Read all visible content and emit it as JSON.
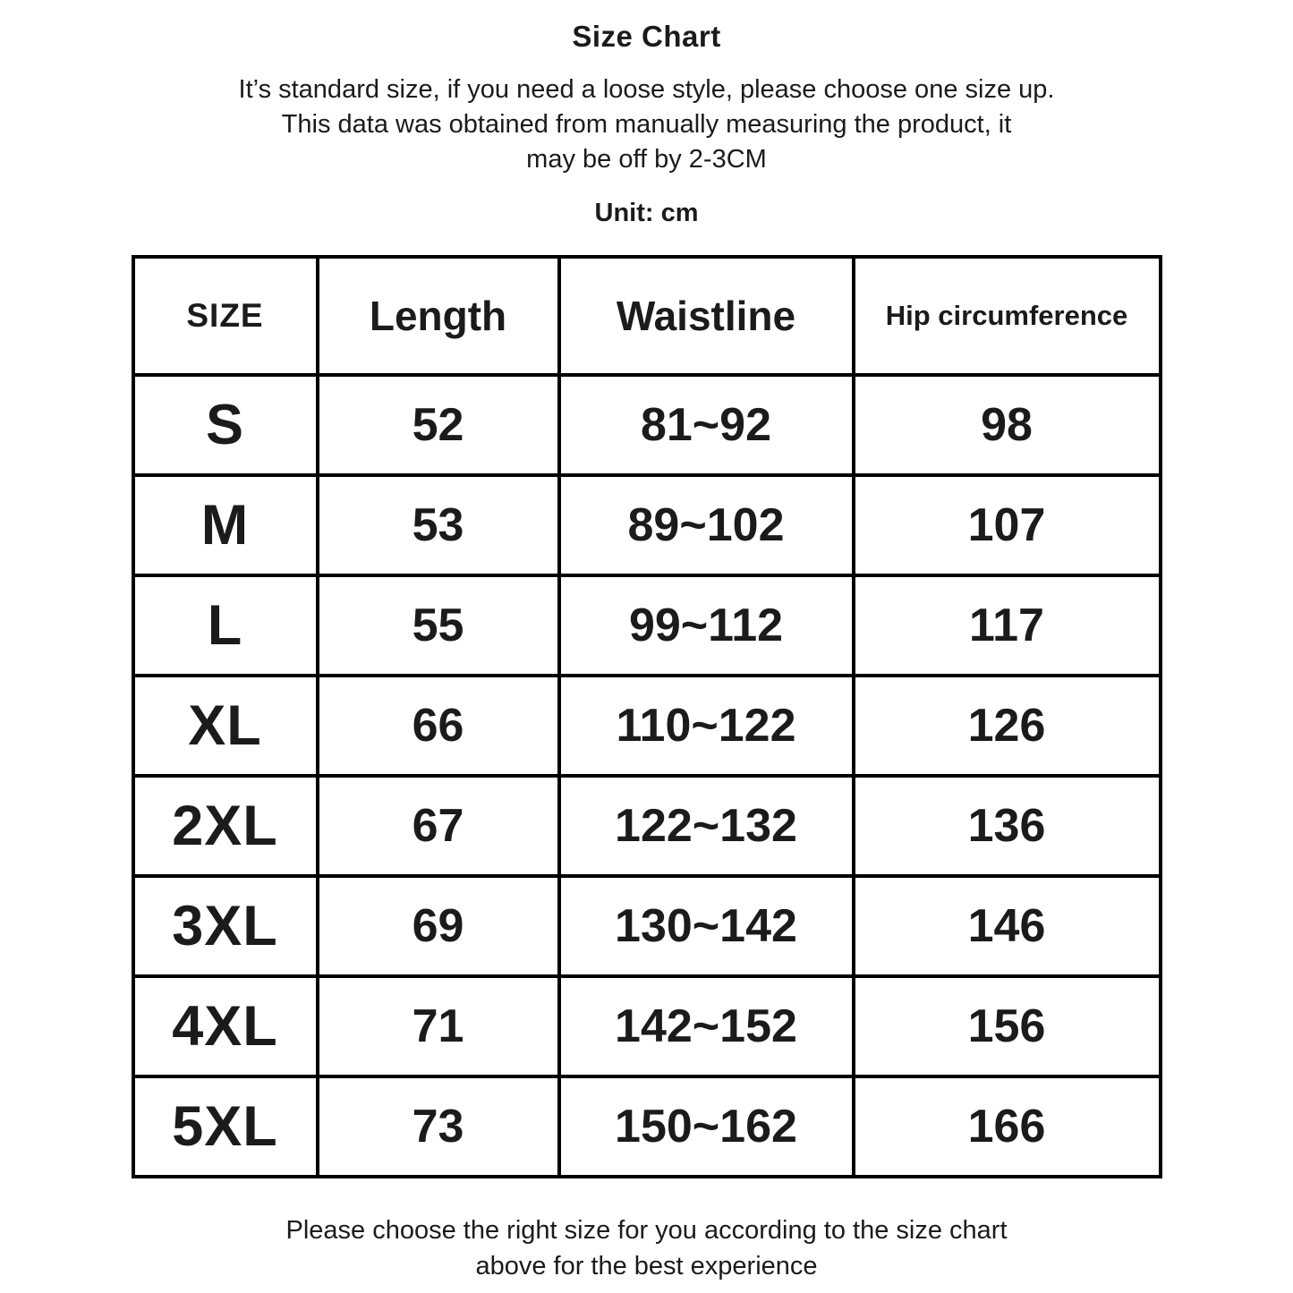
{
  "page": {
    "title": "Size Chart",
    "subtitle_lines": [
      "It’s standard size, if you need a loose style, please choose one size up.",
      "This data was obtained from manually measuring the product, it",
      "may be off by 2-3CM"
    ],
    "unit_label": "Unit: cm",
    "footer_lines": [
      "Please choose the right size for you according to the size chart",
      "above for the best experience"
    ]
  },
  "chart_data": {
    "type": "table",
    "title": "Size Chart",
    "unit": "cm",
    "columns": [
      "SIZE",
      "Length",
      "Waistline",
      "Hip circumference"
    ],
    "rows": [
      [
        "S",
        "52",
        "81~92",
        "98"
      ],
      [
        "M",
        "53",
        "89~102",
        "107"
      ],
      [
        "L",
        "55",
        "99~112",
        "117"
      ],
      [
        "XL",
        "66",
        "110~122",
        "126"
      ],
      [
        "2XL",
        "67",
        "122~132",
        "136"
      ],
      [
        "3XL",
        "69",
        "130~142",
        "146"
      ],
      [
        "4XL",
        "71",
        "142~152",
        "156"
      ],
      [
        "5XL",
        "73",
        "150~162",
        "166"
      ]
    ]
  },
  "colors": {
    "text": "#1b1b1b",
    "border": "#000000",
    "background": "#ffffff"
  }
}
